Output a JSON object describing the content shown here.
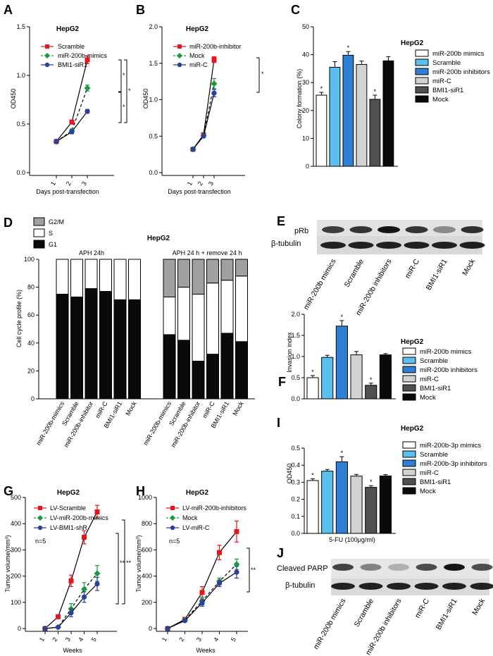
{
  "figure": {
    "cell_line": "HepG2",
    "panel_letters": [
      "A",
      "B",
      "C",
      "D",
      "E",
      "F",
      "G",
      "H",
      "I",
      "J"
    ]
  },
  "panel_a": {
    "letter": "A",
    "title": "HepG2",
    "xlabel": "Days post-transfection",
    "ylabel": "OD450",
    "x_ticks": [
      "1",
      "2",
      "3"
    ],
    "y_ticks": [
      "0.0",
      "0.5",
      "1.0",
      "1.5"
    ],
    "stars": [
      "*",
      "*",
      "*"
    ],
    "chart_data": {
      "type": "line",
      "x": [
        1,
        2,
        3
      ],
      "ylim": [
        0,
        1.5
      ],
      "series": [
        {
          "name": "Scramble",
          "values": [
            0.32,
            0.52,
            1.16
          ],
          "errors": [
            0.01,
            0.02,
            0.04
          ],
          "color": "#e8141c",
          "marker": "square",
          "dash": false
        },
        {
          "name": "miR-200b-mimics",
          "values": [
            0.32,
            0.43,
            0.87
          ],
          "errors": [
            0.01,
            0.02,
            0.03
          ],
          "color": "#1a9a3c",
          "marker": "diamond",
          "dash": true
        },
        {
          "name": "BMI1-siR1",
          "values": [
            0.32,
            0.42,
            0.63
          ],
          "errors": [
            0.01,
            0.02,
            0.02
          ],
          "color": "#2b3f9e",
          "marker": "circle",
          "dash": false
        }
      ]
    }
  },
  "panel_b": {
    "letter": "B",
    "title": "HepG2",
    "xlabel": "Days post-transfection",
    "ylabel": "OD450",
    "x_ticks": [
      "1",
      "2",
      "3"
    ],
    "y_ticks": [
      "0.0",
      "0.5",
      "1.0",
      "1.5",
      "2.0"
    ],
    "stars": [
      "*"
    ],
    "chart_data": {
      "type": "line",
      "x": [
        1,
        2,
        3
      ],
      "ylim": [
        0,
        2.0
      ],
      "series": [
        {
          "name": "miR-200b-inhibitor",
          "values": [
            0.32,
            0.52,
            1.55
          ],
          "errors": [
            0.01,
            0.02,
            0.04
          ],
          "color": "#e8141c",
          "marker": "square",
          "dash": false
        },
        {
          "name": "Mock",
          "values": [
            0.32,
            0.51,
            1.22
          ],
          "errors": [
            0.01,
            0.02,
            0.07
          ],
          "color": "#1a9a3c",
          "marker": "diamond",
          "dash": true
        },
        {
          "name": "miR-C",
          "values": [
            0.32,
            0.5,
            1.09
          ],
          "errors": [
            0.01,
            0.02,
            0.05
          ],
          "color": "#2b3f9e",
          "marker": "circle",
          "dash": false
        }
      ]
    }
  },
  "panel_c": {
    "letter": "C",
    "title": "HepG2",
    "ylabel": "Colony formation  (%)",
    "y_ticks": [
      "0",
      "10",
      "20",
      "30",
      "40",
      "50"
    ],
    "chart_data": {
      "type": "bar",
      "ylim": [
        0,
        50
      ],
      "categories": [
        "miR-200b mimics",
        "Scramble",
        "miR-200b inhibitors",
        "miR-C",
        "BMI1-siR1",
        "Mock"
      ],
      "values": [
        25.5,
        35.5,
        39.8,
        36.5,
        24,
        37.8
      ],
      "errors": [
        1,
        2,
        1.3,
        1.2,
        1.5,
        1.5
      ],
      "stars": [
        "*",
        "",
        "*",
        "",
        "*",
        ""
      ],
      "colors": [
        "#ffffff",
        "#5bc0f0",
        "#2e7fd6",
        "#d2d2d2",
        "#505050",
        "#0a0a0a"
      ]
    }
  },
  "panel_d": {
    "letter": "D",
    "title": "HepG2",
    "ylabel": "Cell cycle profile (%)",
    "group_labels": [
      "APH 24h",
      "APH 24 h + remove 24 h"
    ],
    "y_ticks": [
      "0",
      "20",
      "40",
      "60",
      "80",
      "100"
    ],
    "legend": [
      "G2/M",
      "S",
      "G1"
    ],
    "chart_data": {
      "type": "bar",
      "stacked": true,
      "ylim": [
        0,
        100
      ],
      "categories": [
        "miR-200b-mimics",
        "Scramble",
        "miR-200b-inhibitor",
        "miR-C",
        "BMI1-siR1",
        "Mock",
        "miR-200b-mimics",
        "Scramble",
        "miR-200b-inhibitor",
        "miR-C",
        "BMI1-siR1",
        "Mock"
      ],
      "series": [
        {
          "name": "G1",
          "values": [
            75,
            73,
            79,
            77,
            71,
            71,
            46,
            42,
            27,
            32,
            47,
            41
          ],
          "color": "#0a0a0a"
        },
        {
          "name": "S",
          "values": [
            25,
            27,
            21,
            23,
            29,
            29,
            27,
            38,
            48,
            51,
            38,
            47
          ],
          "color": "#ffffff"
        },
        {
          "name": "G2/M",
          "values": [
            0,
            0,
            0,
            0,
            0,
            0,
            27,
            20,
            25,
            17,
            15,
            12
          ],
          "color": "#a0a0a0"
        }
      ]
    }
  },
  "panel_e": {
    "letter": "E",
    "row_labels": [
      "pRb",
      "β-tubulin"
    ],
    "lanes": [
      "miR-200b mimics",
      "Scramble",
      "miR-200b inhibitors",
      "miR-C",
      "BMI1-siR1",
      "Mock"
    ],
    "band_intensity": [
      0.72,
      0.78,
      0.95,
      0.78,
      0.3,
      0.8
    ]
  },
  "panel_f": {
    "letter": "F",
    "title": "HepG2",
    "ylabel": "Invasion index",
    "y_ticks": [
      "0.0",
      "0.5",
      "1.0",
      "1.5",
      "2.0"
    ],
    "chart_data": {
      "type": "bar",
      "ylim": [
        0,
        2.0
      ],
      "categories": [
        "miR-200b mimics",
        "Scramble",
        "miR-200b inhibitors",
        "miR-C",
        "BMI1-siR1",
        "Mock"
      ],
      "values": [
        0.5,
        0.98,
        1.72,
        1.04,
        0.32,
        1.04
      ],
      "errors": [
        0.05,
        0.05,
        0.13,
        0.08,
        0.05,
        0.03
      ],
      "stars": [
        "*",
        "",
        "*",
        "",
        "*",
        ""
      ],
      "colors": [
        "#ffffff",
        "#5bc0f0",
        "#2e7fd6",
        "#d2d2d2",
        "#505050",
        "#0a0a0a"
      ]
    }
  },
  "panel_g": {
    "letter": "G",
    "title": "HepG2",
    "xlabel": "Weeks",
    "ylabel": "Tumor volume(mm³)",
    "x_ticks": [
      "1",
      "2",
      "3",
      "4",
      "5"
    ],
    "y_ticks": [
      "0",
      "100",
      "200",
      "300",
      "400",
      "500"
    ],
    "note": "n=5",
    "stars": [
      "**",
      "**"
    ],
    "chart_data": {
      "type": "line",
      "x": [
        1,
        2,
        3,
        4,
        5
      ],
      "ylim": [
        0,
        500
      ],
      "series": [
        {
          "name": "LV-Scramble",
          "values": [
            0,
            45,
            182,
            348,
            445
          ],
          "errors": [
            0,
            5,
            22,
            25,
            25
          ],
          "color": "#e8141c",
          "marker": "square",
          "dash": false
        },
        {
          "name": "LV-miR-200b-mimics",
          "values": [
            0,
            5,
            75,
            150,
            210
          ],
          "errors": [
            0,
            3,
            20,
            25,
            30
          ],
          "color": "#1a9a3c",
          "marker": "diamond",
          "dash": true
        },
        {
          "name": "LV-BMI1-shR",
          "values": [
            0,
            5,
            60,
            120,
            170
          ],
          "errors": [
            0,
            3,
            15,
            20,
            25
          ],
          "color": "#2b3f9e",
          "marker": "circle",
          "dash": false
        }
      ]
    }
  },
  "panel_h": {
    "letter": "H",
    "title": "HepG2",
    "xlabel": "Weeks",
    "ylabel": "Tumor volume(mm³)",
    "x_ticks": [
      "1",
      "2",
      "3",
      "4",
      "5"
    ],
    "y_ticks": [
      "0",
      "200",
      "400",
      "600",
      "800",
      "1000"
    ],
    "note": "n=5",
    "stars": [
      "**"
    ],
    "chart_data": {
      "type": "line",
      "x": [
        1,
        2,
        3,
        4,
        5
      ],
      "ylim": [
        0,
        1000
      ],
      "series": [
        {
          "name": "LV-miR-200b-inhibitors",
          "values": [
            0,
            70,
            275,
            580,
            740
          ],
          "errors": [
            0,
            10,
            45,
            55,
            80
          ],
          "color": "#e8141c",
          "marker": "square",
          "dash": false
        },
        {
          "name": "Mock",
          "values": [
            0,
            65,
            210,
            360,
            490
          ],
          "errors": [
            0,
            8,
            30,
            25,
            40
          ],
          "color": "#1a9a3c",
          "marker": "diamond",
          "dash": true
        },
        {
          "name": "LV-miR-C",
          "values": [
            0,
            60,
            195,
            345,
            430
          ],
          "errors": [
            0,
            8,
            25,
            25,
            45
          ],
          "color": "#2b3f9e",
          "marker": "circle",
          "dash": false
        }
      ]
    }
  },
  "panel_i": {
    "letter": "I",
    "title": "HepG2",
    "ylabel": "OD450",
    "xlabel": "5-FU (100μg/ml)",
    "y_ticks": [
      "0.0",
      "0.1",
      "0.2",
      "0.3",
      "0.4",
      "0.5"
    ],
    "chart_data": {
      "type": "bar",
      "ylim": [
        0,
        0.5
      ],
      "categories": [
        "miR-200b-3p mimics",
        "Scramble",
        "miR-200b-3p inhibitors",
        "miR-C",
        "BMI1-siR1",
        "Mock"
      ],
      "values": [
        0.31,
        0.365,
        0.42,
        0.336,
        0.27,
        0.337
      ],
      "errors": [
        0.01,
        0.01,
        0.03,
        0.01,
        0.01,
        0.008
      ],
      "stars": [
        "*",
        "",
        "*",
        "",
        "*",
        ""
      ],
      "colors": [
        "#ffffff",
        "#5bc0f0",
        "#2e7fd6",
        "#d2d2d2",
        "#505050",
        "#0a0a0a"
      ]
    }
  },
  "panel_j": {
    "letter": "J",
    "row_labels": [
      "Cleaved PARP",
      "β-tubulin"
    ],
    "lanes": [
      "miR-200b mimics",
      "Scramble",
      "miR-200b inhibitors",
      "miR-C",
      "BMI1-siR1",
      "Mock"
    ],
    "band_intensity": [
      0.7,
      0.35,
      0.1,
      0.65,
      0.95,
      0.65
    ]
  }
}
